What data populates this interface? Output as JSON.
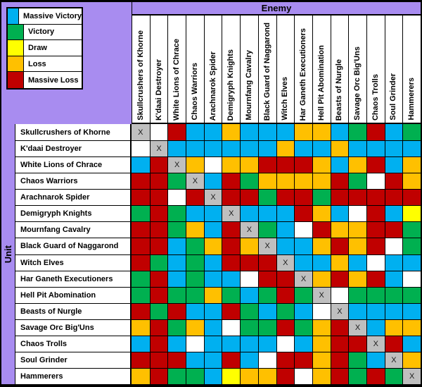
{
  "axes": {
    "enemy_label": "Enemy",
    "unit_label": "Unit"
  },
  "legend": [
    {
      "label": "Massive Victory",
      "color_key": "B"
    },
    {
      "label": "Victory",
      "color_key": "G"
    },
    {
      "label": "Draw",
      "color_key": "Y"
    },
    {
      "label": "Loss",
      "color_key": "O"
    },
    {
      "label": "Massive Loss",
      "color_key": "R"
    }
  ],
  "colors": {
    "B": "#00B0F0",
    "G": "#00B050",
    "Y": "#FFFF00",
    "O": "#FFC000",
    "R": "#C00000",
    "W": "#FFFFFF",
    "X": "#BFBFBF",
    "purple": "#A88CF0"
  },
  "chart_data": {
    "type": "heatmap",
    "columns": [
      "Skullcrushers of Khorne",
      "K'daai Destroyer",
      "White Lions of Chrace",
      "Chaos Warriors",
      "Arachnarok Spider",
      "Demigryph Knights",
      "Mournfang Cavalry",
      "Black Guard of Naggarond",
      "Witch Elves",
      "Har Ganeth Executioners",
      "Hell Pit Abomination",
      "Beasts of Nurgle",
      "Savage Orc Big'Uns",
      "Chaos Trolls",
      "Soul Grinder",
      "Hammerers"
    ],
    "rows": [
      "Skullcrushers of Khorne",
      "K'daai Destroyer",
      "White Lions of Chrace",
      "Chaos Warriors",
      "Arachnarok Spider",
      "Demigryph Knights",
      "Mournfang Cavalry",
      "Black Guard of Naggarond",
      "Witch Elves",
      "Har Ganeth Executioners",
      "Hell Pit Abomination",
      "Beasts of Nurgle",
      "Savage Orc Big'Uns",
      "Chaos Trolls",
      "Soul Grinder",
      "Hammerers"
    ],
    "code_meanings": {
      "B": "Massive Victory",
      "G": "Victory",
      "Y": "Draw",
      "O": "Loss",
      "R": "Massive Loss",
      "W": "No result (blank)",
      "X": "Same unit (diagonal)"
    },
    "diagonal_marker": "X",
    "matrix": [
      "XWRBBOBBBOOBGRBG",
      "WXBBBBBBOBBOBBBB",
      "BRXOWOORRROBORBO",
      "RRGXBRGOOOORGWRO",
      "RRWRXRRGRRGRRRRR",
      "GRGBBXBBBROBWRBY",
      "RRGOBRXGBWROORRG",
      "RRBGOROXBBORORWG",
      "RGBGBRRRXBBOBWBB",
      "GRBGBBWRRXORORBW",
      "GRGGOGBGRGXWGGGG",
      "RGRBBRGBGBWXBBBB",
      "ORGOBWGGRGORXBOO",
      "BRBWBBBBWBORRXRB",
      "RRRBBRBWRRORGBXO",
      "ORGGBYOORWORGRGX"
    ]
  }
}
